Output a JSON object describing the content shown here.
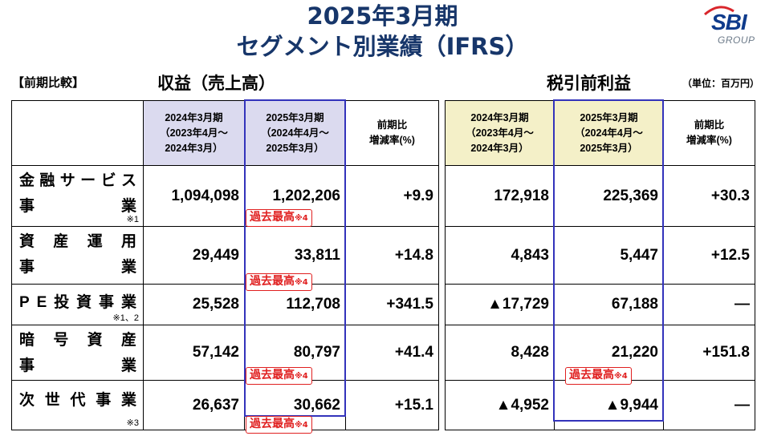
{
  "title": {
    "line1": "2025年3月期",
    "line2": "セグメント別業績（IFRS）"
  },
  "logo": {
    "main": "SBI",
    "sub": "GROUP"
  },
  "labels": {
    "comparison": "【前期比較】",
    "revenue": "収益（売上高）",
    "profit": "税引前利益",
    "unit": "（単位：百万円）"
  },
  "headers": {
    "prev": [
      "2024年3月期",
      "（2023年4月～",
      "2024年3月）"
    ],
    "curr": [
      "2025年3月期",
      "（2024年4月～",
      "2025年3月）"
    ],
    "pct": [
      "前期比",
      "増減率(%)"
    ]
  },
  "badge_text": {
    "main": "過去最高",
    "note": "※4"
  },
  "segments": [
    {
      "name_top": [
        "金",
        "融",
        "サ",
        "ー",
        "ビ",
        "ス"
      ],
      "name_bottom": [
        "事",
        "業"
      ],
      "note": "※1",
      "rev_prev": "1,094,098",
      "rev_curr": "1,202,206",
      "rev_pct": "+9.9",
      "pro_prev": "172,918",
      "pro_curr": "225,369",
      "pro_pct": "+30.3"
    },
    {
      "name_top": [
        "資",
        "産",
        "運",
        "用"
      ],
      "name_bottom": [
        "事",
        "業"
      ],
      "note": "",
      "rev_prev": "29,449",
      "rev_curr": "33,811",
      "rev_pct": "+14.8",
      "pro_prev": "4,843",
      "pro_curr": "5,447",
      "pro_pct": "+12.5"
    },
    {
      "name_top": [
        "P",
        "E",
        "投",
        "資",
        "事",
        "業"
      ],
      "name_bottom": [],
      "note": "※1、2",
      "rev_prev": "25,528",
      "rev_curr": "112,708",
      "rev_pct": "+341.5",
      "pro_prev": "▲17,729",
      "pro_curr": "67,188",
      "pro_pct": "―"
    },
    {
      "name_top": [
        "暗",
        "号",
        "資",
        "産"
      ],
      "name_bottom": [
        "事",
        "業"
      ],
      "note": "",
      "rev_prev": "57,142",
      "rev_curr": "80,797",
      "rev_pct": "+41.4",
      "pro_prev": "8,428",
      "pro_curr": "21,220",
      "pro_pct": "+151.8"
    },
    {
      "name_top": [
        "次",
        "世",
        "代",
        "事",
        "業"
      ],
      "name_bottom": [],
      "note": "※3",
      "rev_prev": "26,637",
      "rev_curr": "30,662",
      "rev_pct": "+15.1",
      "pro_prev": "▲4,952",
      "pro_curr": "▲9,944",
      "pro_pct": "―"
    }
  ]
}
